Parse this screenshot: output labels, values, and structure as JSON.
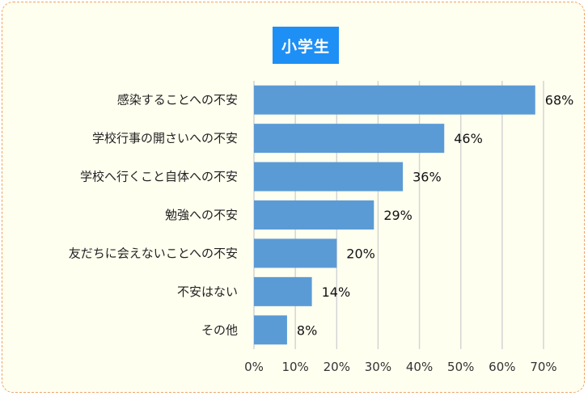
{
  "chart_data": {
    "type": "bar",
    "orientation": "horizontal",
    "title": "小学生",
    "categories": [
      "感染することへの不安",
      "学校行事の開さいへの不安",
      "学校へ行くこと自体への不安",
      "勉強への不安",
      "友だちに会えないことへの不安",
      "不安はない",
      "その他"
    ],
    "values": [
      68,
      46,
      36,
      29,
      20,
      14,
      8
    ],
    "value_labels": [
      "68%",
      "46%",
      "36%",
      "29%",
      "20%",
      "14%",
      "8%"
    ],
    "xlim": [
      0,
      70
    ],
    "x_ticks": [
      "0%",
      "10%",
      "20%",
      "30%",
      "40%",
      "50%",
      "60%",
      "70%"
    ],
    "grid": true,
    "bar_color": "#5b9bd5",
    "title_bg_color": "#1e8ff5",
    "frame_border_color": "#f0a36a",
    "background_color": "#fffff0"
  }
}
